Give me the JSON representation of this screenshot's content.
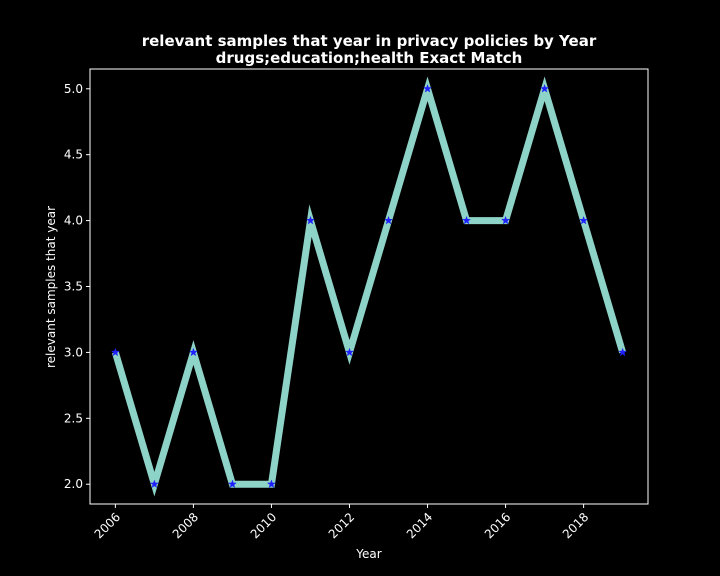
{
  "chart_data": {
    "type": "line",
    "title_line1": "relevant samples that year in privacy policies by Year",
    "title_line2": "drugs;education;health Exact Match",
    "xlabel": "Year",
    "ylabel": "relevant samples that year",
    "x": [
      2006,
      2007,
      2008,
      2009,
      2010,
      2011,
      2012,
      2013,
      2014,
      2015,
      2016,
      2017,
      2018,
      2019
    ],
    "series": [
      {
        "values": [
          3,
          2,
          3,
          2,
          2,
          4,
          3,
          4,
          5,
          4,
          4,
          5,
          4,
          3
        ]
      }
    ],
    "xlim": [
      2005.35,
      2019.65
    ],
    "ylim": [
      1.85,
      5.15
    ],
    "xticks": [
      "2006",
      "2008",
      "2010",
      "2012",
      "2014",
      "2016",
      "2018"
    ],
    "yticks": [
      "2.0",
      "2.5",
      "3.0",
      "3.5",
      "4.0",
      "4.5",
      "5.0"
    ],
    "grid": false,
    "colors": {
      "background": "#000000",
      "line": "#8dd3c7",
      "marker": "#1f1fff",
      "axes": "#ffffff",
      "text": "#ffffff"
    }
  }
}
